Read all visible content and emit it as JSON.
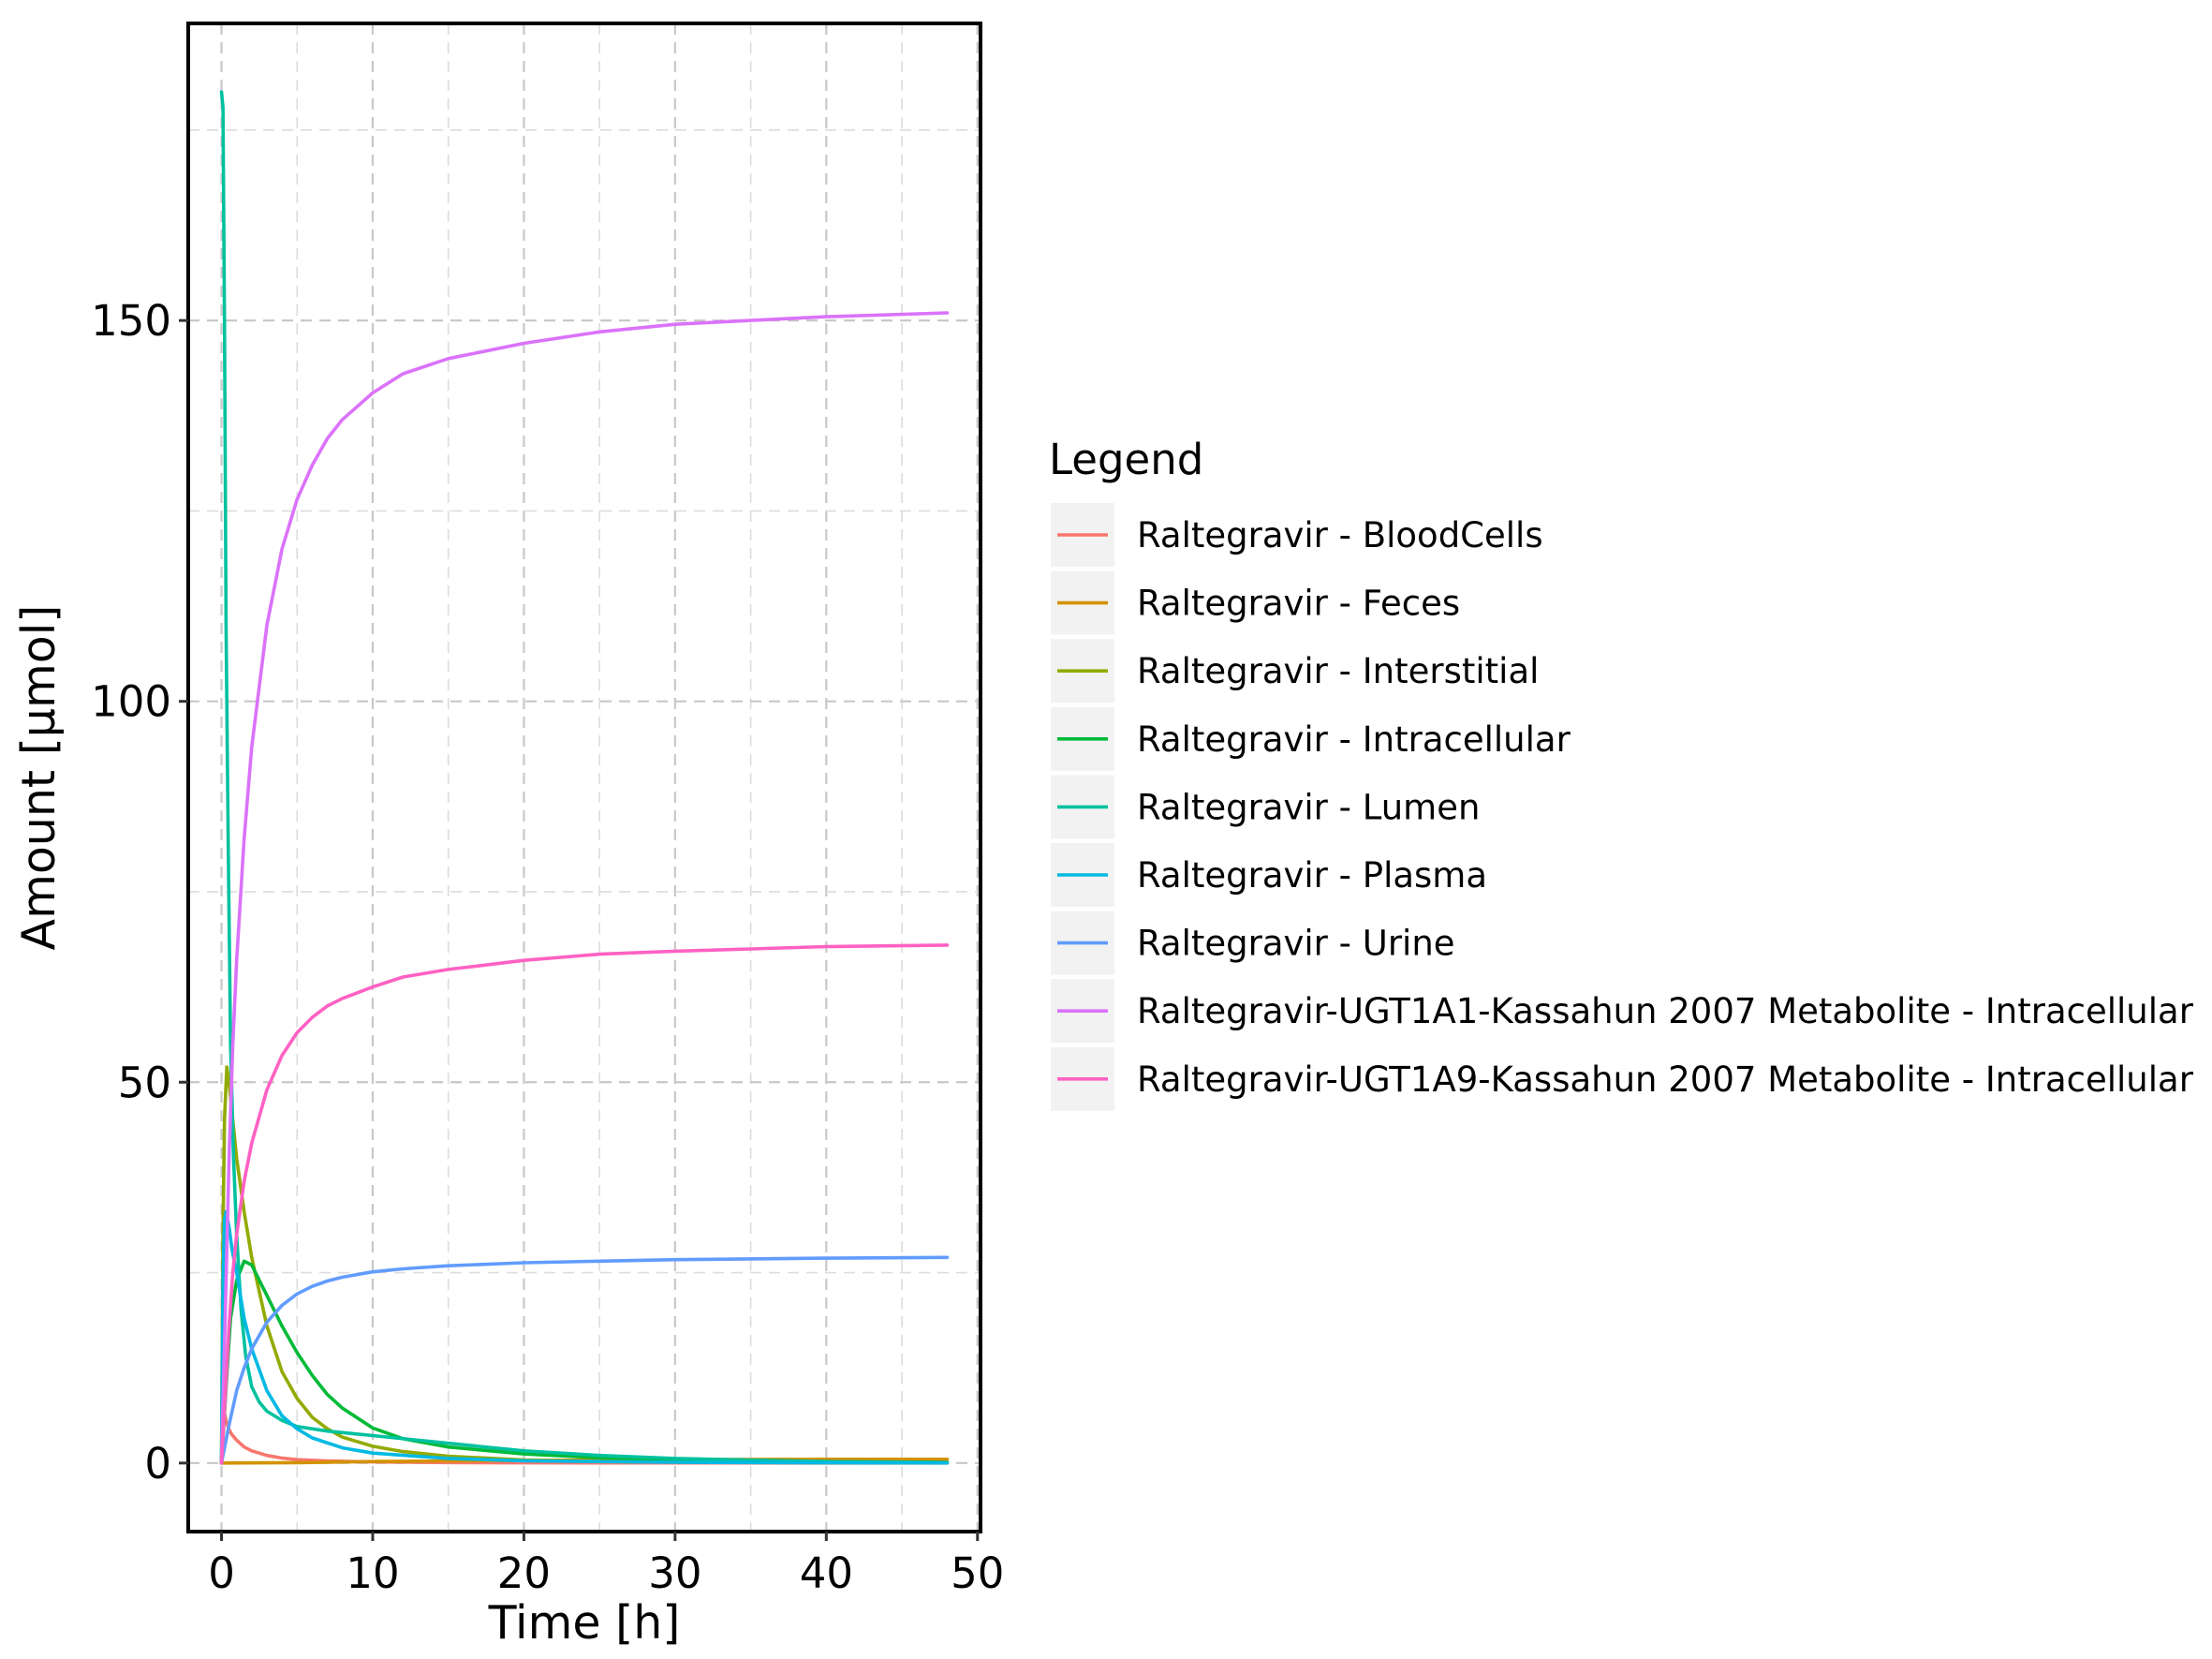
{
  "chart_data": {
    "type": "line",
    "xlabel": "Time [h]",
    "ylabel": "Amount [µmol]",
    "xlim": [
      -2.2,
      50.2
    ],
    "ylim": [
      -9,
      189
    ],
    "x_ticks": [
      0,
      10,
      20,
      30,
      40,
      50
    ],
    "x_tick_labels": [
      "0",
      "10",
      "20",
      "30",
      "40",
      "50"
    ],
    "y_ticks": [
      0,
      50,
      100,
      150
    ],
    "y_tick_labels": [
      "0",
      "50",
      "100",
      "150"
    ],
    "grid": true,
    "legend_title": "Legend",
    "legend_position": "right",
    "series": [
      {
        "name": "Raltegravir - BloodCells",
        "color": "#F8766D",
        "x": [
          0,
          0.1,
          0.2,
          0.3,
          0.5,
          0.7,
          1,
          1.5,
          2,
          3,
          4,
          5,
          7,
          10,
          15,
          20,
          30,
          40,
          48
        ],
        "y": [
          0,
          6.5,
          6.5,
          5.5,
          4.4,
          3.7,
          3.0,
          2.1,
          1.6,
          1.0,
          0.65,
          0.45,
          0.27,
          0.15,
          0.06,
          0.03,
          0.01,
          0.0,
          0.0
        ]
      },
      {
        "name": "Raltegravir - Feces",
        "color": "#D39200",
        "x": [
          0,
          5,
          10,
          20,
          30,
          40,
          48
        ],
        "y": [
          0,
          0.05,
          0.2,
          0.35,
          0.45,
          0.5,
          0.5
        ]
      },
      {
        "name": "Raltegravir - Interstitial",
        "color": "#93AA00",
        "x": [
          0,
          0.1,
          0.2,
          0.35,
          0.5,
          0.7,
          1,
          1.5,
          2,
          3,
          4,
          5,
          6,
          7,
          8,
          10,
          12,
          15,
          20,
          25,
          30,
          40,
          48
        ],
        "y": [
          0,
          30,
          45,
          52,
          50,
          46,
          40,
          33,
          27,
          18,
          12,
          8.5,
          6,
          4.5,
          3.4,
          2.2,
          1.5,
          0.9,
          0.4,
          0.2,
          0.12,
          0.05,
          0.02
        ]
      },
      {
        "name": "Raltegravir - Intracellular",
        "color": "#00BA38",
        "x": [
          0,
          0.3,
          0.6,
          1,
          1.5,
          2,
          3,
          4,
          5,
          6,
          7,
          8,
          10,
          12,
          15,
          20,
          25,
          30,
          40,
          48
        ],
        "y": [
          0,
          10,
          19,
          24,
          26.5,
          26,
          22,
          18,
          14.5,
          11.5,
          9,
          7.2,
          4.6,
          3.2,
          2.1,
          1.2,
          0.7,
          0.45,
          0.2,
          0.1
        ]
      },
      {
        "name": "Raltegravir - Lumen",
        "color": "#00C19F",
        "x": [
          0,
          0.1,
          0.2,
          0.3,
          0.45,
          0.6,
          0.8,
          1,
          1.3,
          1.6,
          2,
          2.5,
          3,
          4,
          5,
          7,
          10,
          15,
          20,
          25,
          30,
          40,
          48
        ],
        "y": [
          180,
          178,
          150,
          110,
          80,
          55,
          40,
          30,
          20,
          14,
          10,
          8,
          6.8,
          5.6,
          4.8,
          4.2,
          3.6,
          2.6,
          1.6,
          1.0,
          0.6,
          0.2,
          0.05
        ]
      },
      {
        "name": "Raltegravir - Plasma",
        "color": "#00B9E3",
        "x": [
          0,
          0.1,
          0.2,
          0.3,
          0.5,
          0.7,
          1,
          1.5,
          2,
          3,
          4,
          5,
          6,
          8,
          10,
          15,
          20,
          30,
          40,
          48
        ],
        "y": [
          0,
          24,
          32,
          33,
          31,
          28,
          25,
          19,
          15,
          9.5,
          6.2,
          4.5,
          3.3,
          2.0,
          1.3,
          0.6,
          0.3,
          0.1,
          0.03,
          0.01
        ]
      },
      {
        "name": "Raltegravir - Urine",
        "color": "#619CFF",
        "x": [
          0,
          0.5,
          1,
          1.5,
          2,
          3,
          4,
          5,
          6,
          7,
          8,
          10,
          12,
          15,
          20,
          25,
          30,
          40,
          48
        ],
        "y": [
          0,
          5,
          9.5,
          12.5,
          15,
          18.5,
          20.7,
          22.2,
          23.2,
          23.9,
          24.4,
          25.1,
          25.5,
          25.9,
          26.3,
          26.5,
          26.7,
          26.9,
          27
        ]
      },
      {
        "name": "Raltegravir-UGT1A1-Kassahun 2007 Metabolite - Intracellular",
        "color": "#DB72FB",
        "x": [
          0,
          0.25,
          0.5,
          0.75,
          1,
          1.5,
          2,
          3,
          4,
          5,
          6,
          7,
          8,
          10,
          12,
          15,
          20,
          25,
          30,
          35,
          40,
          48
        ],
        "y": [
          0,
          20,
          40,
          55,
          66,
          82,
          94,
          110,
          120,
          126.5,
          131,
          134.5,
          137,
          140.5,
          143,
          145,
          147,
          148.5,
          149.5,
          150,
          150.5,
          151
        ]
      },
      {
        "name": "Raltegravir-UGT1A9-Kassahun 2007 Metabolite - Intracellular",
        "color": "#FF61C3",
        "x": [
          0,
          0.25,
          0.5,
          0.75,
          1,
          1.5,
          2,
          3,
          4,
          5,
          6,
          7,
          8,
          10,
          12,
          15,
          20,
          25,
          30,
          35,
          40,
          48
        ],
        "y": [
          0,
          9,
          18,
          25,
          30,
          37,
          42,
          49,
          53.5,
          56.5,
          58.5,
          60,
          61,
          62.5,
          63.8,
          64.8,
          66,
          66.8,
          67.2,
          67.5,
          67.8,
          68
        ]
      }
    ]
  }
}
